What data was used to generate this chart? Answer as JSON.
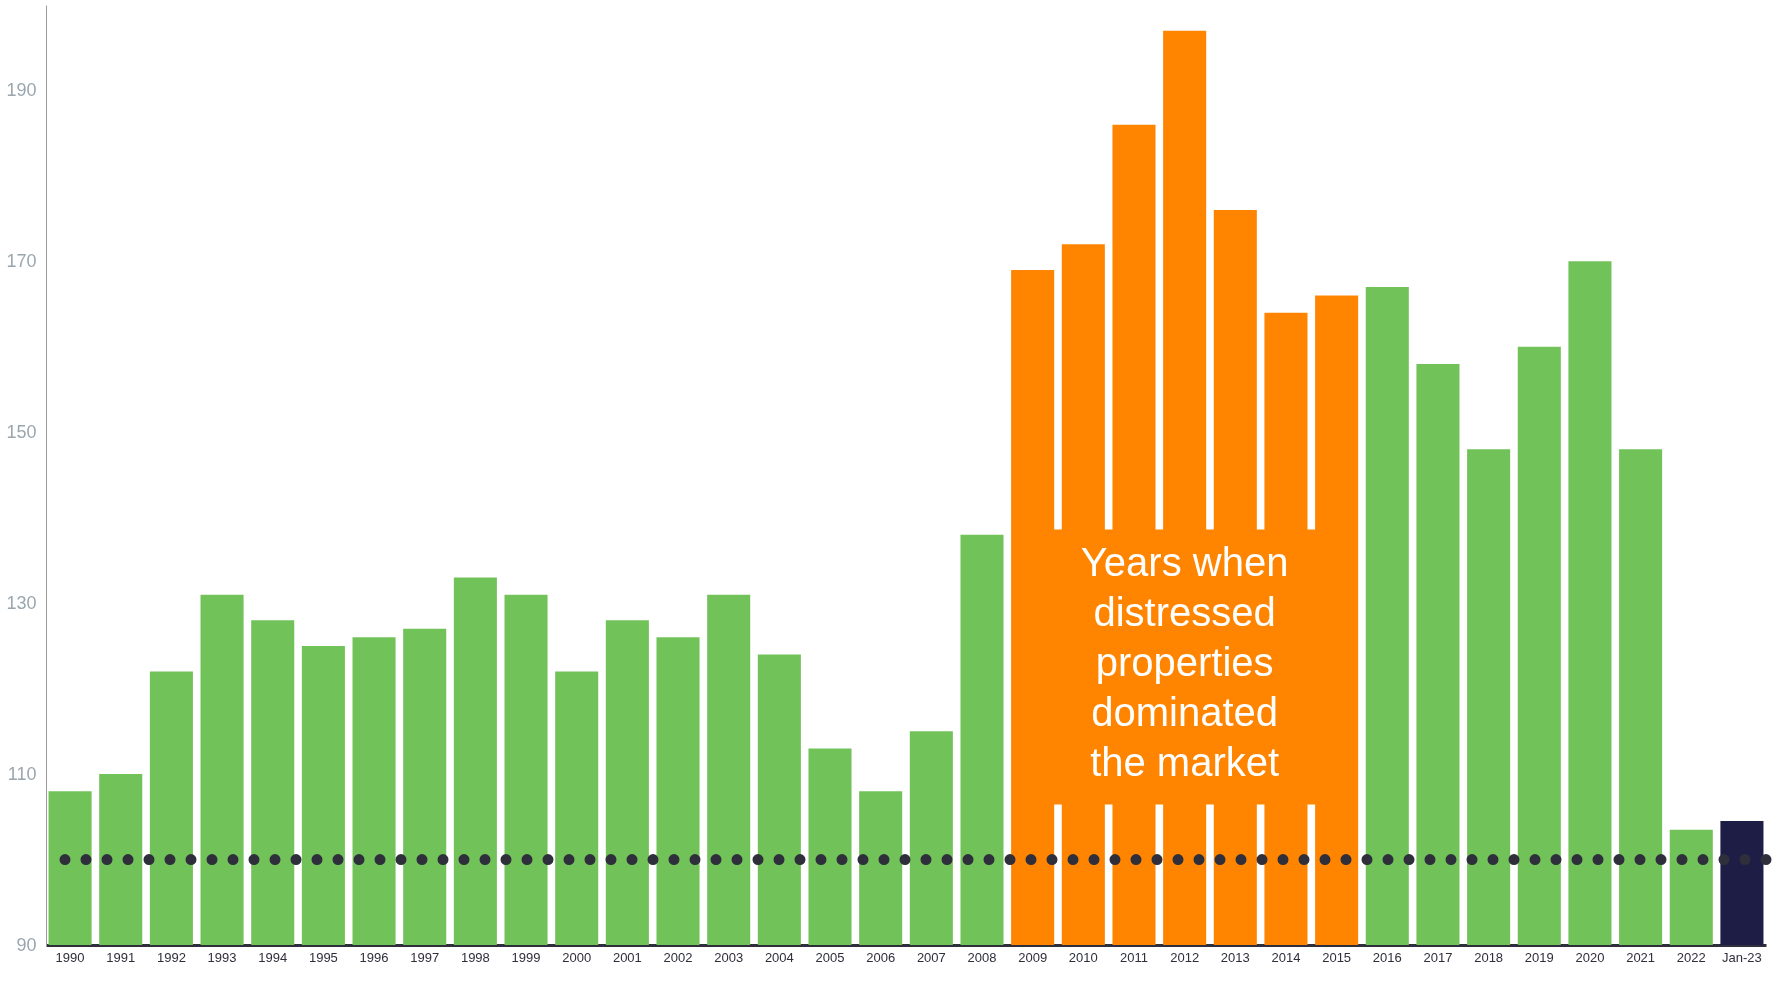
{
  "chart_data": {
    "type": "bar",
    "categories": [
      "1990",
      "1991",
      "1992",
      "1993",
      "1994",
      "1995",
      "1996",
      "1997",
      "1998",
      "1999",
      "2000",
      "2001",
      "2002",
      "2003",
      "2004",
      "2005",
      "2006",
      "2007",
      "2008",
      "2009",
      "2010",
      "2011",
      "2012",
      "2013",
      "2014",
      "2015",
      "2016",
      "2017",
      "2018",
      "2019",
      "2020",
      "2021",
      "2022",
      "Jan-23"
    ],
    "values": [
      108,
      110,
      122,
      131,
      128,
      125,
      126,
      127,
      133,
      131,
      122,
      128,
      126,
      131,
      124,
      113,
      108,
      115,
      138,
      169,
      172,
      186,
      197,
      176,
      164,
      166,
      167,
      158,
      148,
      160,
      170,
      148,
      103.5,
      104.5
    ],
    "colors": [
      "#72c25a",
      "#72c25a",
      "#72c25a",
      "#72c25a",
      "#72c25a",
      "#72c25a",
      "#72c25a",
      "#72c25a",
      "#72c25a",
      "#72c25a",
      "#72c25a",
      "#72c25a",
      "#72c25a",
      "#72c25a",
      "#72c25a",
      "#72c25a",
      "#72c25a",
      "#72c25a",
      "#72c25a",
      "#ff8500",
      "#ff8500",
      "#ff8500",
      "#ff8500",
      "#ff8500",
      "#ff8500",
      "#ff8500",
      "#72c25a",
      "#72c25a",
      "#72c25a",
      "#72c25a",
      "#72c25a",
      "#72c25a",
      "#72c25a",
      "#1e1d45"
    ],
    "ylim": [
      90,
      200
    ],
    "yticks": [
      90,
      110,
      130,
      150,
      170,
      190
    ],
    "grid": false,
    "ref_lines": [
      {
        "axis": "y",
        "value": 100,
        "color": "#2e2f3b",
        "line_style": "dotted"
      }
    ],
    "annotations": [
      "Years when distressed properties dominated the market"
    ]
  }
}
